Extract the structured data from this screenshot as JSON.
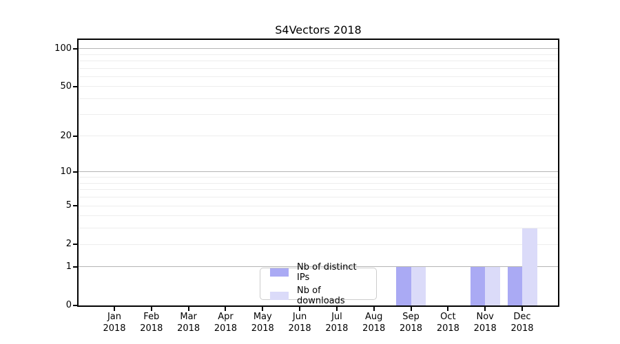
{
  "chart_data": {
    "type": "bar",
    "title": "S4Vectors 2018",
    "categories": [
      "Jan",
      "Feb",
      "Mar",
      "Apr",
      "May",
      "Jun",
      "Jul",
      "Aug",
      "Sep",
      "Oct",
      "Nov",
      "Dec"
    ],
    "year_label": "2018",
    "series": [
      {
        "name": "Nb of distinct IPs",
        "color": "#aaaaf4",
        "values": [
          0,
          0,
          0,
          0,
          0,
          0,
          0,
          0,
          1,
          0,
          1,
          1
        ]
      },
      {
        "name": "Nb of downloads",
        "color": "#dbdbf9",
        "values": [
          0,
          0,
          0,
          0,
          0,
          0,
          0,
          0,
          1,
          0,
          1,
          3
        ]
      }
    ],
    "xlabel": "",
    "ylabel": "",
    "yscale": "log1p",
    "ylim": [
      0,
      117
    ],
    "yticks": [
      0,
      1,
      2,
      5,
      10,
      20,
      50,
      100
    ],
    "grid": {
      "major_lines": [
        1,
        10,
        100
      ],
      "minor_lines": [
        2,
        3,
        4,
        5,
        6,
        7,
        8,
        9,
        20,
        30,
        40,
        50,
        60,
        70,
        80,
        90
      ],
      "major_color": "#b4b4b4",
      "minor_color": "#ededed"
    },
    "legend": {
      "position": "lower center inside",
      "border_color": "#cccccc"
    }
  }
}
